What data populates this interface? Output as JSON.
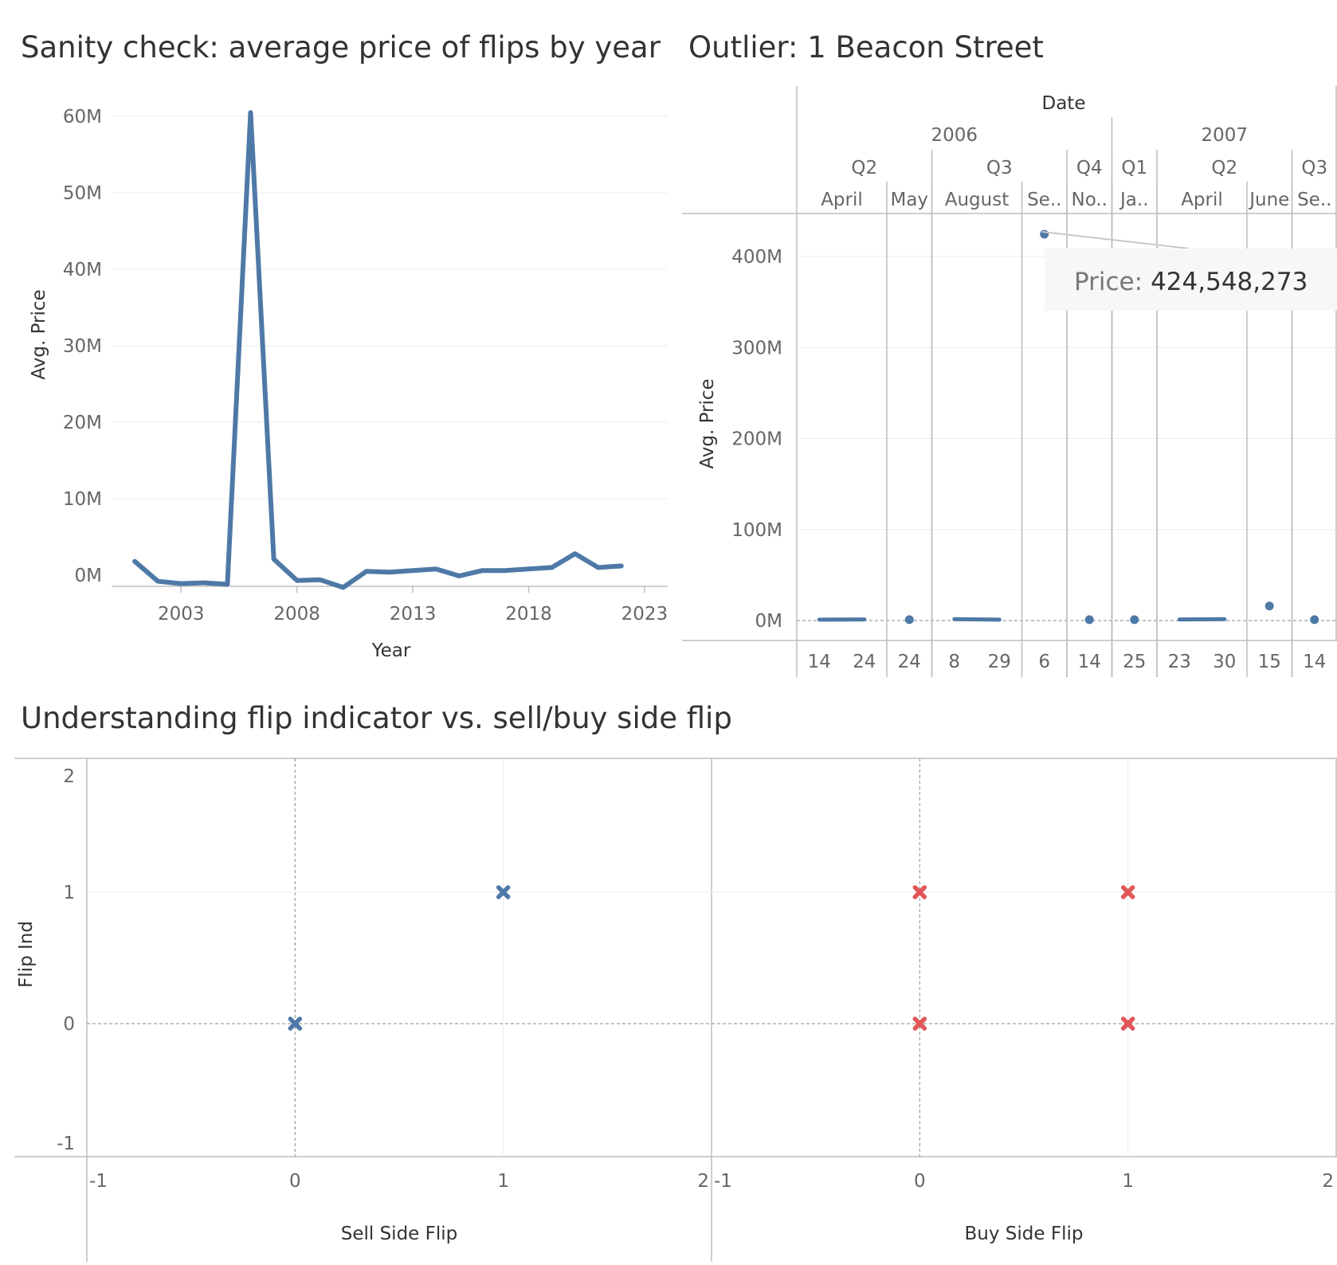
{
  "chart_data": [
    {
      "type": "line",
      "title": "Sanity check: average price of flips by year",
      "xlabel": "Year",
      "ylabel": "Avg. Price",
      "ylim": [
        0,
        60000000
      ],
      "xlim": [
        2000,
        2024
      ],
      "yticks": [
        "0M",
        "10M",
        "20M",
        "30M",
        "40M",
        "50M",
        "60M"
      ],
      "xticks": [
        "2003",
        "2008",
        "2013",
        "2018",
        "2023"
      ],
      "grid": true,
      "color": "#4e79a7",
      "x": [
        2001,
        2002,
        2003,
        2004,
        2005,
        2006,
        2007,
        2008,
        2009,
        2010,
        2011,
        2012,
        2013,
        2014,
        2015,
        2016,
        2017,
        2018,
        2019,
        2020,
        2021,
        2022
      ],
      "values": [
        1800000,
        -800000,
        -1100000,
        -1000000,
        -1200000,
        60500000,
        2100000,
        -700000,
        -600000,
        -1600000,
        500000,
        400000,
        600000,
        800000,
        -100000,
        600000,
        600000,
        800000,
        1000000,
        2800000,
        1000000,
        1200000
      ]
    },
    {
      "type": "line",
      "title": "Outlier: 1 Beacon Street",
      "ylabel": "Avg. Price",
      "header_label": "Date",
      "ylim": [
        0,
        400000000
      ],
      "yticks": [
        "0M",
        "100M",
        "200M",
        "300M",
        "400M"
      ],
      "color": "#4e79a7",
      "years": [
        "2006",
        "2007"
      ],
      "quarters": [
        "Q2",
        "Q3",
        "Q4",
        "Q1",
        "Q2",
        "Q3"
      ],
      "months": [
        "April",
        "May",
        "August",
        "Se..",
        "No..",
        "Ja..",
        "April",
        "June",
        "Se.."
      ],
      "days": [
        "14",
        "24",
        "24",
        "8",
        "29",
        "6",
        "14",
        "25",
        "23",
        "30",
        "15",
        "14"
      ],
      "values": [
        1000000,
        1200000,
        1000000,
        1500000,
        1000000,
        424548273,
        1000000,
        1000000,
        1200000,
        1500000,
        16000000,
        1000000
      ],
      "tooltip": {
        "label": "Price:",
        "value": "424,548,273"
      }
    },
    {
      "type": "scatter",
      "title": "Understanding flip indicator vs. sell/buy side flip",
      "ylabel": "Flip Ind",
      "ylim": [
        -1,
        2
      ],
      "yticks": [
        "2",
        "1",
        "0",
        "-1"
      ],
      "xticks": [
        "-1",
        "0",
        "1",
        "2"
      ],
      "panels": [
        {
          "xlabel": "Sell Side Flip",
          "xlim": [
            -1,
            2
          ],
          "color": "#4e79a7",
          "points": [
            [
              0,
              0
            ],
            [
              1,
              1
            ]
          ]
        },
        {
          "xlabel": "Buy Side Flip",
          "xlim": [
            -1,
            2
          ],
          "color": "#e15759",
          "points": [
            [
              0,
              1
            ],
            [
              0,
              0
            ],
            [
              1,
              1
            ],
            [
              1,
              0
            ]
          ]
        }
      ]
    }
  ]
}
